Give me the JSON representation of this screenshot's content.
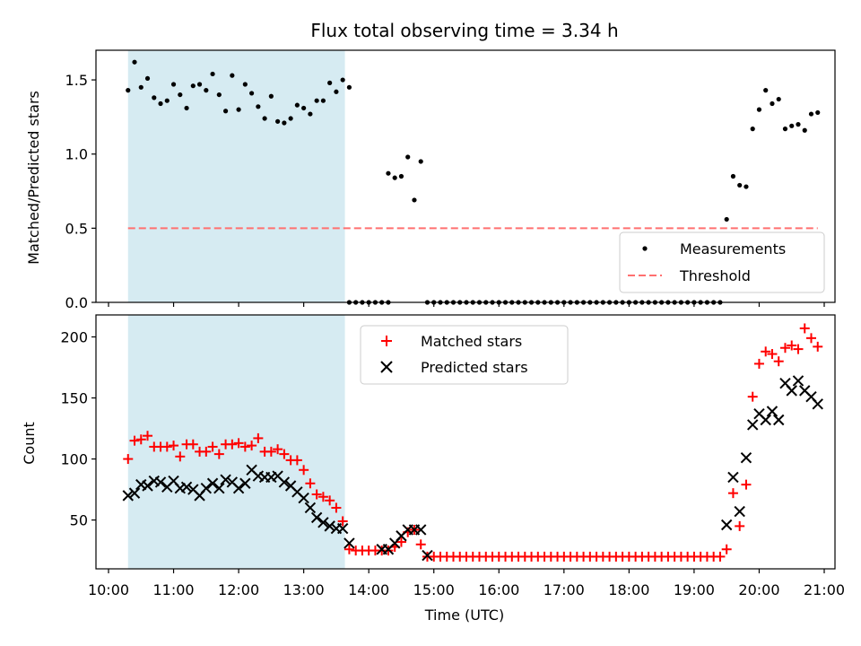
{
  "chart_data": [
    {
      "type": "scatter",
      "title": "Flux total observing time = 3.34 h",
      "xlabel": "",
      "ylabel": "Matched/Predicted stars",
      "xlim": [
        "10:00",
        "21:00"
      ],
      "ylim": [
        0,
        1.7
      ],
      "yticks": [
        0.0,
        0.5,
        1.0,
        1.5
      ],
      "ytick_labels": [
        "0.0",
        "0.5",
        "1.0",
        "1.5"
      ],
      "shaded_span": {
        "from": "10:18",
        "to": "13:38",
        "color": "#add8e6"
      },
      "legend_position": "lower-right",
      "series": [
        {
          "name": "Measurements",
          "marker": "dot",
          "color": "#000000",
          "x": [
            "10:18",
            "10:24",
            "10:30",
            "10:36",
            "10:42",
            "10:48",
            "10:54",
            "11:00",
            "11:06",
            "11:12",
            "11:18",
            "11:24",
            "11:30",
            "11:36",
            "11:42",
            "11:48",
            "11:54",
            "12:00",
            "12:06",
            "12:12",
            "12:18",
            "12:24",
            "12:30",
            "12:36",
            "12:42",
            "12:48",
            "12:54",
            "13:00",
            "13:06",
            "13:12",
            "13:18",
            "13:24",
            "13:30",
            "13:36",
            "13:42",
            "14:18",
            "14:24",
            "14:30",
            "14:36",
            "14:42",
            "14:48",
            "14:54",
            "19:30",
            "19:36",
            "19:42",
            "19:48",
            "19:54",
            "20:00",
            "20:06",
            "20:12",
            "20:18",
            "20:24",
            "20:30",
            "20:36",
            "20:42",
            "20:48",
            "20:54"
          ],
          "y": [
            1.43,
            1.62,
            1.45,
            1.51,
            1.38,
            1.34,
            1.36,
            1.47,
            1.4,
            1.31,
            1.46,
            1.47,
            1.43,
            1.54,
            1.4,
            1.29,
            1.53,
            1.3,
            1.47,
            1.41,
            1.32,
            1.24,
            1.39,
            1.22,
            1.21,
            1.24,
            1.33,
            1.31,
            1.27,
            1.36,
            1.36,
            1.48,
            1.42,
            1.5,
            1.45,
            0.87,
            0.84,
            0.85,
            0.98,
            0.69,
            0.95,
            0.0,
            0.56,
            0.85,
            0.79,
            0.78,
            1.17,
            1.3,
            1.43,
            1.34,
            1.37,
            1.17,
            1.19,
            1.2,
            1.16,
            1.27,
            1.28
          ],
          "zero_run": {
            "from": "13:42",
            "to": "14:18",
            "step_minutes": 6
          },
          "zero_run_2": {
            "from": "15:00",
            "to": "19:24",
            "step_minutes": 6
          }
        },
        {
          "name": "Threshold",
          "marker": "dashed-line",
          "color": "#ff6b6b",
          "x": [
            "10:18",
            "20:54"
          ],
          "y": [
            0.5,
            0.5
          ]
        }
      ]
    },
    {
      "type": "scatter",
      "title": "",
      "xlabel": "Time (UTC)",
      "ylabel": "Count",
      "xlim": [
        "10:00",
        "21:00"
      ],
      "ylim": [
        10,
        218
      ],
      "yticks": [
        50,
        100,
        150,
        200
      ],
      "ytick_labels": [
        "50",
        "100",
        "150",
        "200"
      ],
      "xticks": [
        "10:00",
        "11:00",
        "12:00",
        "13:00",
        "14:00",
        "15:00",
        "16:00",
        "17:00",
        "18:00",
        "19:00",
        "20:00",
        "21:00"
      ],
      "shaded_span": {
        "from": "10:18",
        "to": "13:38",
        "color": "#add8e6"
      },
      "legend_position": "top-center",
      "series": [
        {
          "name": "Matched stars",
          "marker": "plus",
          "color": "#ff0000",
          "x": [
            "10:18",
            "10:24",
            "10:30",
            "10:36",
            "10:42",
            "10:48",
            "10:54",
            "11:00",
            "11:06",
            "11:12",
            "11:18",
            "11:24",
            "11:30",
            "11:36",
            "11:42",
            "11:48",
            "11:54",
            "12:00",
            "12:06",
            "12:12",
            "12:18",
            "12:24",
            "12:30",
            "12:36",
            "12:42",
            "12:48",
            "12:54",
            "13:00",
            "13:06",
            "13:12",
            "13:18",
            "13:24",
            "13:30",
            "13:36",
            "13:42",
            "13:48",
            "13:54",
            "14:00",
            "14:06",
            "14:12",
            "14:18",
            "14:24",
            "14:30",
            "14:36",
            "14:42",
            "14:48",
            "14:54",
            "19:30",
            "19:36",
            "19:42",
            "19:48",
            "19:54",
            "20:00",
            "20:06",
            "20:12",
            "20:18",
            "20:24",
            "20:30",
            "20:36",
            "20:42",
            "20:48",
            "20:54"
          ],
          "y": [
            100,
            115,
            116,
            119,
            110,
            110,
            110,
            111,
            102,
            112,
            112,
            106,
            106,
            110,
            104,
            112,
            112,
            113,
            110,
            111,
            117,
            106,
            106,
            108,
            104,
            99,
            99,
            91,
            80,
            71,
            69,
            66,
            60,
            49,
            26,
            25,
            25,
            25,
            25,
            25,
            25,
            28,
            32,
            40,
            42,
            30,
            20,
            26,
            72,
            45,
            79,
            151,
            178,
            188,
            186,
            180,
            191,
            193,
            190,
            207,
            199,
            192
          ],
          "flat_run": {
            "from": "15:00",
            "to": "19:24",
            "step_minutes": 6,
            "value": 20
          }
        },
        {
          "name": "Predicted stars",
          "marker": "x",
          "color": "#000000",
          "x": [
            "10:18",
            "10:24",
            "10:30",
            "10:36",
            "10:42",
            "10:48",
            "10:54",
            "11:00",
            "11:06",
            "11:12",
            "11:18",
            "11:24",
            "11:30",
            "11:36",
            "11:42",
            "11:48",
            "11:54",
            "12:00",
            "12:06",
            "12:12",
            "12:18",
            "12:24",
            "12:30",
            "12:36",
            "12:42",
            "12:48",
            "12:54",
            "13:00",
            "13:06",
            "13:12",
            "13:18",
            "13:24",
            "13:30",
            "13:36",
            "13:42",
            "14:12",
            "14:18",
            "14:24",
            "14:30",
            "14:36",
            "14:42",
            "14:48",
            "14:54",
            "19:30",
            "19:36",
            "19:42",
            "19:48",
            "19:54",
            "20:00",
            "20:06",
            "20:12",
            "20:18",
            "20:24",
            "20:30",
            "20:36",
            "20:42",
            "20:48",
            "20:54"
          ],
          "y": [
            70,
            72,
            79,
            78,
            82,
            81,
            77,
            82,
            76,
            77,
            75,
            70,
            76,
            80,
            76,
            83,
            81,
            76,
            80,
            91,
            86,
            85,
            85,
            86,
            81,
            78,
            73,
            68,
            60,
            52,
            48,
            45,
            43,
            43,
            31,
            26,
            26,
            31,
            37,
            42,
            42,
            42,
            21,
            46,
            85,
            57,
            101,
            128,
            137,
            132,
            139,
            132,
            162,
            156,
            164,
            156,
            151,
            145
          ]
        }
      ]
    }
  ]
}
